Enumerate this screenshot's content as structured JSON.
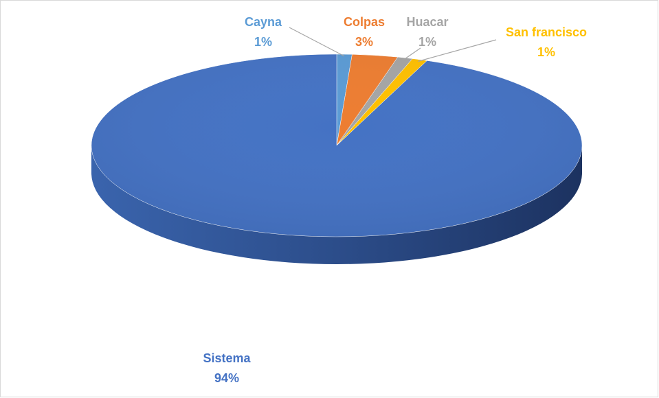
{
  "chart_data": {
    "type": "pie",
    "categories": [
      "Cayna",
      "Colpas",
      "Huacar",
      "San francisco",
      "Sistema"
    ],
    "values": [
      1,
      3,
      1,
      1,
      94
    ],
    "value_labels": [
      "1%",
      "3%",
      "1%",
      "1%",
      "94%"
    ],
    "colors": [
      "#5b9bd5",
      "#ed7d31",
      "#a5a5a5",
      "#ffc000",
      "#4472c4"
    ]
  }
}
